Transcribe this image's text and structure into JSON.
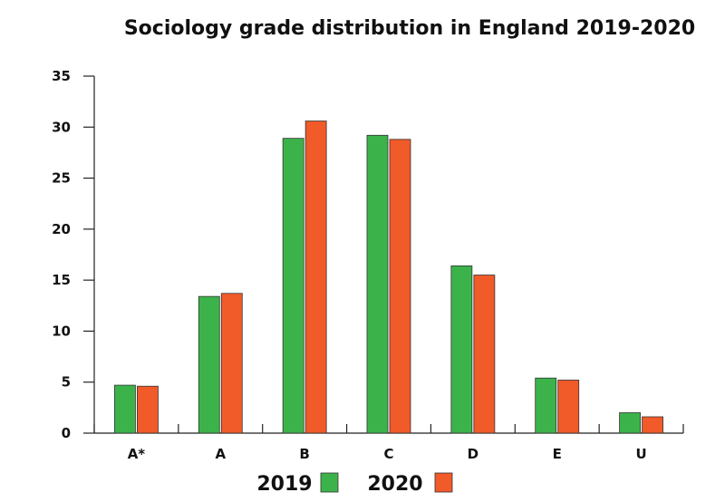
{
  "chart_data": {
    "type": "bar",
    "title": "Sociology grade distribution in England 2019-2020",
    "xlabel": "",
    "ylabel": "",
    "categories": [
      "A*",
      "A",
      "B",
      "C",
      "D",
      "E",
      "U"
    ],
    "series": [
      {
        "name": "2019",
        "values": [
          4.7,
          13.4,
          28.9,
          29.2,
          16.4,
          5.4,
          2.0
        ],
        "color": "#3cb34a"
      },
      {
        "name": "2020",
        "values": [
          4.6,
          13.7,
          30.6,
          28.8,
          15.5,
          5.2,
          1.6
        ],
        "color": "#f15a29"
      }
    ],
    "ylim": [
      0,
      35
    ],
    "yticks": [
      "0",
      "5",
      "10",
      "15",
      "20",
      "25",
      "30",
      "35"
    ],
    "grid": false,
    "legend_position": "bottom-center"
  }
}
